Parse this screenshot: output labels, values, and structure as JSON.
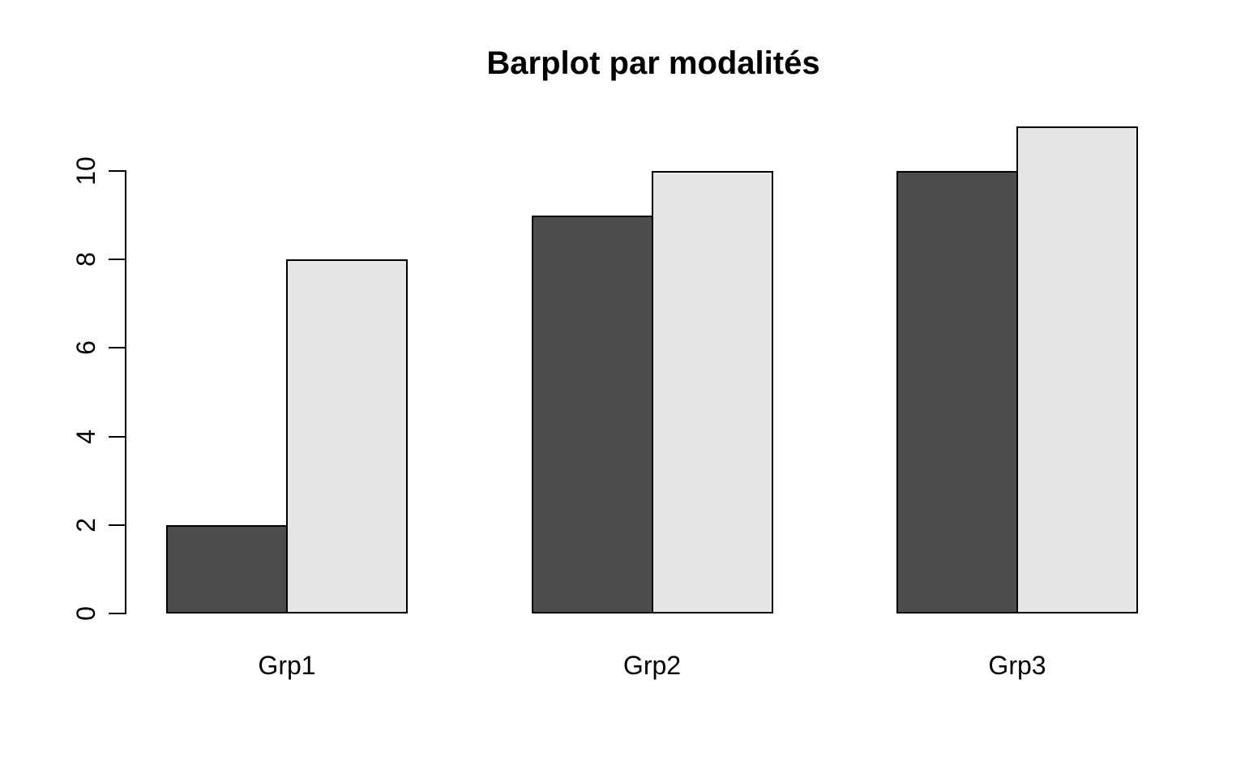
{
  "chart_data": {
    "type": "bar",
    "title": "Barplot par modalités",
    "categories": [
      "Grp1",
      "Grp2",
      "Grp3"
    ],
    "series": [
      {
        "name": "dark-gray-series",
        "color": "#4D4D4D",
        "values": [
          2,
          9,
          10
        ]
      },
      {
        "name": "light-gray-series",
        "color": "#E6E6E6",
        "values": [
          8,
          10,
          11
        ]
      }
    ],
    "xlabel": "",
    "ylabel": "",
    "yticks": [
      0,
      2,
      4,
      6,
      8,
      10
    ],
    "ylim": [
      0,
      11
    ],
    "grid": false,
    "legend_position": "none",
    "bar_border_color": "#000000",
    "axis_color": "#000000",
    "background_color": "#FFFFFF",
    "ytick_label_rotation_deg": -90
  }
}
